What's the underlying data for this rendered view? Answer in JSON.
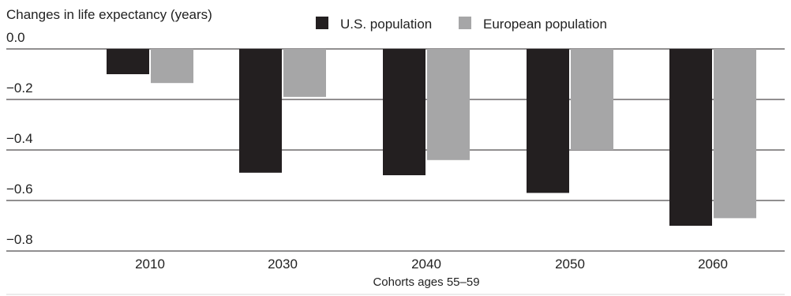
{
  "chart_data": {
    "type": "bar",
    "ylabel": "Changes in life expectancy (years)",
    "xlabel": "Cohorts ages 55–59",
    "categories": [
      "2010",
      "2030",
      "2040",
      "2050",
      "2060"
    ],
    "series": [
      {
        "name": "U.S. population",
        "color": "#231f20",
        "values": [
          -0.1,
          -0.49,
          -0.5,
          -0.57,
          -0.7
        ]
      },
      {
        "name": "European population",
        "color": "#a6a6a7",
        "values": [
          -0.135,
          -0.19,
          -0.44,
          -0.4,
          -0.67
        ]
      }
    ],
    "ylim": [
      -0.8,
      0.0
    ],
    "yticks": [
      {
        "value": 0.0,
        "label": "0.0"
      },
      {
        "value": -0.2,
        "label": "−0.2"
      },
      {
        "value": -0.4,
        "label": "−0.4"
      },
      {
        "value": -0.6,
        "label": "−0.6"
      },
      {
        "value": -0.8,
        "label": "−0.8"
      }
    ],
    "grid": true,
    "legend_position": "top-center"
  }
}
